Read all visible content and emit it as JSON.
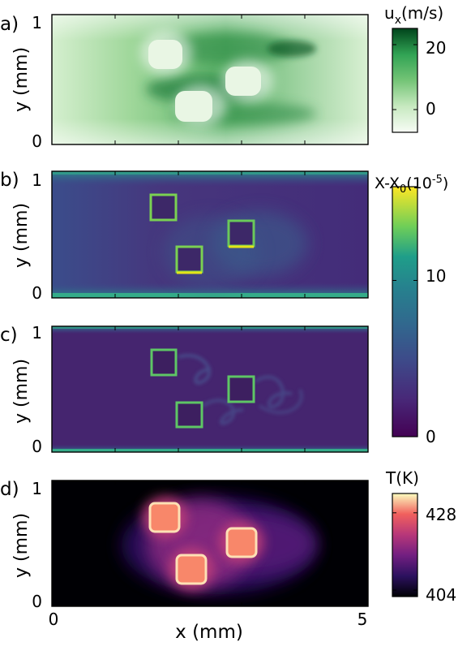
{
  "chart_data": [
    {
      "type": "heatmap",
      "panel_label": "a)",
      "xlabel": "",
      "ylabel": "y (mm)",
      "yticks": [
        "0",
        "1"
      ],
      "xlim": [
        0,
        5
      ],
      "ylim": [
        0,
        1
      ],
      "colorbar": {
        "title": "u",
        "title_sub": "x",
        "title_unit": "(m/s)",
        "ticks": [
          "20",
          "0"
        ],
        "range": [
          -7,
          25
        ],
        "colormap": "greens"
      },
      "obstacles": [
        {
          "label": "upper-left",
          "x_center": 1.72,
          "y_center": 0.77
        },
        {
          "label": "lower",
          "x_center": 2.12,
          "y_center": 0.3
        },
        {
          "label": "right",
          "x_center": 2.9,
          "y_center": 0.55
        }
      ]
    },
    {
      "type": "heatmap",
      "panel_label": "b)",
      "xlabel": "",
      "ylabel": "y (mm)",
      "yticks": [
        "0",
        "1"
      ],
      "xlim": [
        0,
        5
      ],
      "ylim": [
        0,
        1
      ],
      "colorbar": {
        "title": "X-X",
        "title_sub": "0",
        "title_unit_pre": "(10",
        "title_sup": "-5",
        "title_unit_post": ")",
        "ticks": [
          "10",
          "0"
        ],
        "range": [
          0,
          16
        ],
        "colormap": "viridis",
        "shared_with": "c)"
      }
    },
    {
      "type": "heatmap",
      "panel_label": "c)",
      "xlabel": "",
      "ylabel": "y (mm)",
      "yticks": [
        "0",
        "1"
      ],
      "xlim": [
        0,
        5
      ],
      "ylim": [
        0,
        1
      ]
    },
    {
      "type": "heatmap",
      "panel_label": "d)",
      "xlabel": "x (mm)",
      "xticks": [
        "0",
        "5"
      ],
      "ylabel": "y (mm)",
      "yticks": [
        "0",
        "1"
      ],
      "xlim": [
        0,
        5
      ],
      "ylim": [
        0,
        1
      ],
      "colorbar": {
        "title": "T(K)",
        "ticks": [
          "428",
          "404"
        ],
        "range": [
          402,
          434
        ],
        "colormap": "magma"
      }
    }
  ]
}
